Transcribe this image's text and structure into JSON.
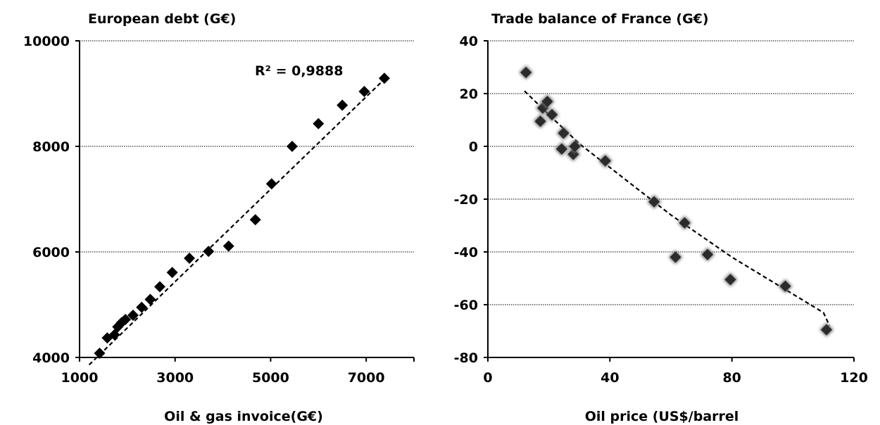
{
  "chart_data": [
    {
      "type": "scatter",
      "title": "European debt (G€)",
      "xlabel": "Oil & gas invoice(G€)",
      "ylabel": "",
      "xlim": [
        1000,
        8000
      ],
      "ylim": [
        4000,
        10000
      ],
      "xticks": [
        1000,
        3000,
        5000,
        7000
      ],
      "yticks": [
        4000,
        6000,
        8000,
        10000
      ],
      "grid": "horizontal",
      "marker": "diamond",
      "annotation": "R² = 0,9888",
      "series": [
        {
          "x": [
            1420,
            1580,
            1730,
            1800,
            1880,
            1960,
            2120,
            2300,
            2480,
            2680,
            2940,
            3300,
            3700,
            4120,
            4680,
            5020,
            5450,
            6000,
            6500,
            6960,
            7380
          ],
          "y": [
            4080,
            4370,
            4430,
            4580,
            4660,
            4720,
            4800,
            4950,
            5100,
            5340,
            5610,
            5880,
            6010,
            6110,
            6610,
            7290,
            8000,
            8430,
            8780,
            9040,
            9290
          ]
        }
      ],
      "trendline": {
        "type": "linear",
        "x": [
          1200,
          7400
        ],
        "y": [
          3860,
          9290
        ]
      }
    },
    {
      "type": "scatter",
      "title": "Trade balance of France (G€)",
      "xlabel": "Oil price (US$/barrel",
      "ylabel": "",
      "xlim": [
        0,
        120
      ],
      "ylim": [
        -80,
        40
      ],
      "xticks": [
        0,
        40,
        80,
        120
      ],
      "yticks": [
        -80,
        -60,
        -40,
        -20,
        0,
        20,
        40
      ],
      "grid": "horizontal",
      "marker": "diamond-shadow",
      "series": [
        {
          "x": [
            12.5,
            17.2,
            18.0,
            19.5,
            21.0,
            24.2,
            24.8,
            28.0,
            28.5,
            38.5,
            54.5,
            61.5,
            64.5,
            72.0,
            79.5,
            97.5,
            111.0
          ],
          "y": [
            28,
            9.5,
            14.5,
            17,
            12,
            -1,
            5,
            -3,
            0,
            -5.5,
            -21,
            -42,
            -29,
            -41,
            -50.5,
            -53,
            -69.5
          ]
        }
      ],
      "trendline": {
        "type": "polynomial",
        "x": [
          12,
          20,
          30,
          40,
          50,
          60,
          70,
          80,
          90,
          100,
          110,
          112
        ],
        "y": [
          21,
          12,
          1,
          -8,
          -17,
          -26,
          -34,
          -42,
          -49,
          -56,
          -63,
          -68
        ]
      }
    }
  ]
}
